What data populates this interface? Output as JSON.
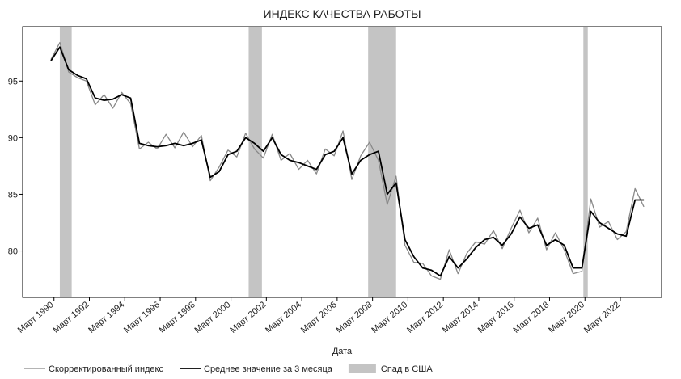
{
  "chart_data": {
    "type": "line",
    "title": "ИНДЕКС КАЧЕСТВА РАБОТЫ",
    "x_label": "Дата",
    "x": [
      1990.0,
      1990.5,
      1991.0,
      1991.5,
      1992.0,
      1992.5,
      1993.0,
      1993.5,
      1994.0,
      1994.5,
      1995.0,
      1995.5,
      1996.0,
      1996.5,
      1997.0,
      1997.5,
      1998.0,
      1998.5,
      1999.0,
      1999.5,
      2000.0,
      2000.5,
      2001.0,
      2001.5,
      2002.0,
      2002.5,
      2003.0,
      2003.5,
      2004.0,
      2004.5,
      2005.0,
      2005.5,
      2006.0,
      2006.5,
      2007.0,
      2007.5,
      2008.0,
      2008.5,
      2009.0,
      2009.5,
      2010.0,
      2010.5,
      2011.0,
      2011.5,
      2012.0,
      2012.5,
      2013.0,
      2013.5,
      2014.0,
      2014.5,
      2015.0,
      2015.5,
      2016.0,
      2016.5,
      2017.0,
      2017.5,
      2018.0,
      2018.5,
      2019.0,
      2019.5,
      2020.0,
      2020.5,
      2021.0,
      2021.5,
      2022.0,
      2022.5,
      2023.0,
      2023.5
    ],
    "series": [
      {
        "name": "Скорректированный индекс",
        "color": "#888888",
        "width": 1.3,
        "values": [
          96.9,
          98.4,
          95.8,
          95.3,
          95.0,
          92.9,
          93.8,
          92.6,
          94.0,
          93.0,
          89.0,
          89.6,
          89.0,
          90.3,
          89.1,
          90.5,
          89.2,
          90.2,
          86.2,
          87.4,
          88.9,
          88.3,
          90.4,
          89.0,
          88.2,
          90.3,
          88.0,
          88.6,
          87.2,
          88.0,
          86.8,
          89.0,
          88.4,
          90.6,
          86.3,
          88.4,
          89.6,
          88.0,
          84.1,
          86.6,
          80.5,
          79.0,
          78.9,
          77.8,
          77.5,
          80.1,
          78.0,
          79.8,
          80.8,
          80.6,
          81.8,
          80.2,
          82.0,
          83.6,
          81.6,
          82.9,
          80.1,
          81.6,
          80.1,
          78.0,
          78.2,
          84.6,
          82.1,
          82.6,
          81.0,
          81.7,
          85.5,
          83.9
        ]
      },
      {
        "name": "Среднее значение за 3 месяца",
        "color": "#000000",
        "width": 1.8,
        "values": [
          96.8,
          98.0,
          96.0,
          95.5,
          95.2,
          93.5,
          93.3,
          93.4,
          93.8,
          93.5,
          89.5,
          89.3,
          89.2,
          89.3,
          89.5,
          89.3,
          89.5,
          89.8,
          86.5,
          87.0,
          88.5,
          88.8,
          90.0,
          89.5,
          88.8,
          90.0,
          88.5,
          88.0,
          87.8,
          87.5,
          87.2,
          88.5,
          88.8,
          90.0,
          86.8,
          88.0,
          88.5,
          88.8,
          85.0,
          86.0,
          81.0,
          79.5,
          78.5,
          78.3,
          77.8,
          79.5,
          78.5,
          79.3,
          80.3,
          81.0,
          81.2,
          80.5,
          81.5,
          83.0,
          82.0,
          82.3,
          80.5,
          81.0,
          80.5,
          78.5,
          78.5,
          83.5,
          82.5,
          82.0,
          81.5,
          81.3,
          84.5,
          84.5
        ]
      }
    ],
    "recession_name": "Спад в США",
    "recession_color": "#c4c4c4",
    "recessions": [
      [
        1990.5,
        1991.17
      ],
      [
        2001.17,
        2001.92
      ],
      [
        2007.92,
        2009.5
      ],
      [
        2020.08,
        2020.33
      ]
    ],
    "xlim": [
      1988.4,
      2024.5
    ],
    "ylim": [
      75.9,
      99.8
    ],
    "yticks": [
      80,
      85,
      90,
      95
    ],
    "xticks": [
      {
        "value": 1990.17,
        "label": "Март 1990"
      },
      {
        "value": 1992.17,
        "label": "Март 1992"
      },
      {
        "value": 1994.17,
        "label": "Март 1994"
      },
      {
        "value": 1996.17,
        "label": "Март 1996"
      },
      {
        "value": 1998.17,
        "label": "Март 1998"
      },
      {
        "value": 2000.17,
        "label": "Март 2000"
      },
      {
        "value": 2002.17,
        "label": "Март 2002"
      },
      {
        "value": 2004.17,
        "label": "Март 2004"
      },
      {
        "value": 2006.17,
        "label": "Март 2006"
      },
      {
        "value": 2008.17,
        "label": "Март 2008"
      },
      {
        "value": 2010.17,
        "label": "Март 2010"
      },
      {
        "value": 2012.17,
        "label": "Март 2012"
      },
      {
        "value": 2014.17,
        "label": "Март 2014"
      },
      {
        "value": 2016.17,
        "label": "Март 2016"
      },
      {
        "value": 2018.17,
        "label": "Март 2018"
      },
      {
        "value": 2020.17,
        "label": "Март 2020"
      },
      {
        "value": 2022.17,
        "label": "Март 2022"
      }
    ]
  }
}
